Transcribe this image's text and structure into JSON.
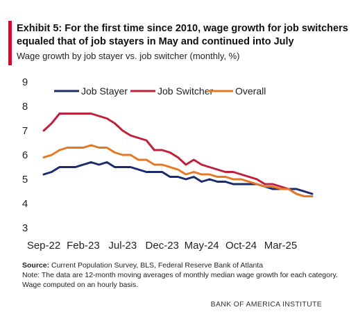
{
  "header": {
    "title": "Exhibit 5: For the first time since 2010, wage growth for job switchers equaled that of job stayers in May and continued into July",
    "subtitle": "Wage growth by job stayer vs. job switcher (monthly, %)"
  },
  "footer": {
    "source_label": "Source:",
    "source_text": " Current Population Survey, BLS, Federal Reserve Bank of Atlanta",
    "note": "Note: The data are 12-month moving averages of monthly median wage growth for each category. Wage computed on an hourly basis.",
    "brand": "BANK OF AMERICA INSTITUTE"
  },
  "colors": {
    "accent": "#c8102e"
  },
  "chart_data": {
    "type": "line",
    "title": "",
    "xlabel": "",
    "ylabel": "",
    "ylim": [
      3,
      9
    ],
    "yticks": [
      3,
      4,
      5,
      6,
      7,
      8,
      9
    ],
    "xticks": [
      "Sep-22",
      "Feb-23",
      "Jul-23",
      "Dec-23",
      "May-24",
      "Oct-24",
      "Mar-25"
    ],
    "legend_position": "top",
    "grid": false,
    "x": [
      "Sep-22",
      "Oct-22",
      "Nov-22",
      "Dec-22",
      "Jan-23",
      "Feb-23",
      "Mar-23",
      "Apr-23",
      "May-23",
      "Jun-23",
      "Jul-23",
      "Aug-23",
      "Sep-23",
      "Oct-23",
      "Nov-23",
      "Dec-23",
      "Jan-24",
      "Feb-24",
      "Mar-24",
      "Apr-24",
      "May-24",
      "Jun-24",
      "Jul-24",
      "Aug-24",
      "Sep-24",
      "Oct-24",
      "Nov-24",
      "Dec-24",
      "Jan-25",
      "Feb-25",
      "Mar-25",
      "Apr-25",
      "May-25",
      "Jun-25",
      "Jul-25"
    ],
    "series": [
      {
        "name": "Job Stayer",
        "color": "#1b2a6b",
        "values": [
          5.2,
          5.3,
          5.5,
          5.5,
          5.5,
          5.6,
          5.7,
          5.6,
          5.7,
          5.5,
          5.5,
          5.5,
          5.4,
          5.3,
          5.3,
          5.3,
          5.1,
          5.1,
          5.0,
          5.1,
          4.9,
          5.0,
          4.9,
          4.9,
          4.8,
          4.8,
          4.8,
          4.8,
          4.7,
          4.6,
          4.6,
          4.6,
          4.6,
          4.5,
          4.4
        ]
      },
      {
        "name": "Job Switcher",
        "color": "#c0213a",
        "values": [
          7.0,
          7.3,
          7.7,
          7.7,
          7.7,
          7.7,
          7.7,
          7.6,
          7.5,
          7.3,
          7.0,
          6.8,
          6.7,
          6.6,
          6.2,
          6.2,
          6.1,
          5.9,
          5.6,
          5.8,
          5.6,
          5.5,
          5.4,
          5.3,
          5.3,
          5.2,
          5.1,
          5.0,
          4.8,
          4.8,
          4.7,
          4.6,
          4.4,
          4.3,
          4.3
        ]
      },
      {
        "name": "Overall",
        "color": "#e87722",
        "values": [
          5.9,
          6.0,
          6.2,
          6.3,
          6.3,
          6.3,
          6.4,
          6.3,
          6.3,
          6.1,
          6.0,
          6.0,
          5.8,
          5.8,
          5.6,
          5.6,
          5.5,
          5.4,
          5.2,
          5.3,
          5.2,
          5.2,
          5.1,
          5.1,
          5.0,
          5.0,
          4.9,
          4.8,
          4.7,
          4.7,
          4.6,
          4.6,
          4.4,
          4.3,
          4.3
        ]
      }
    ]
  }
}
